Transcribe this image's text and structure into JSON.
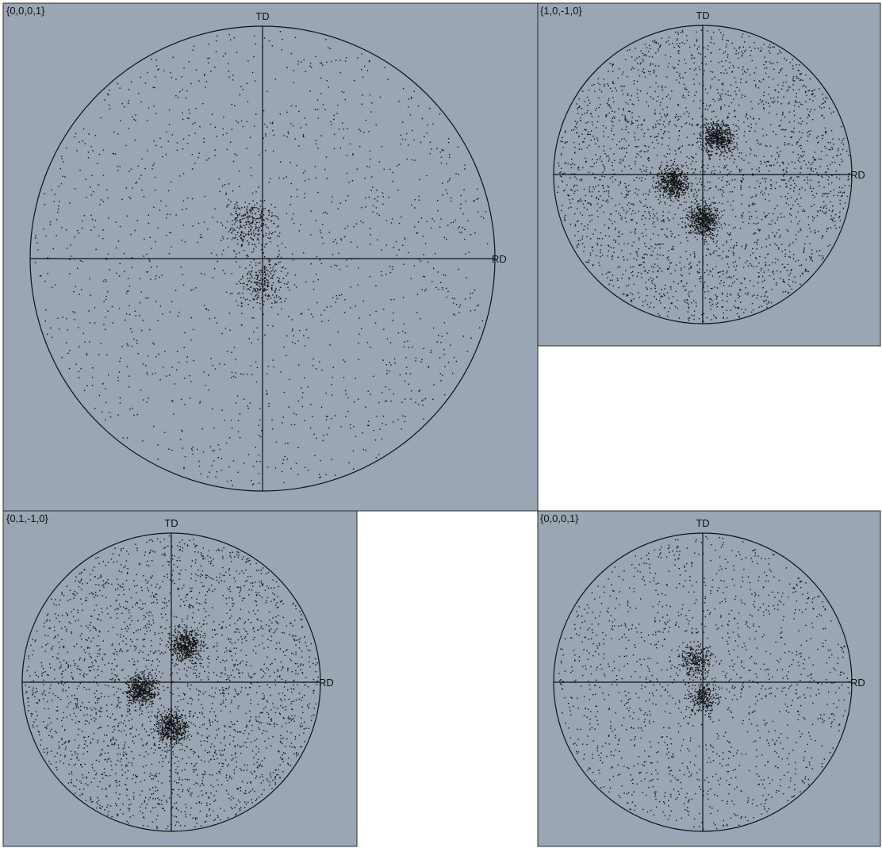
{
  "colors": {
    "panel_background": "#9aa6b4",
    "points": "#111111",
    "page_background": "#ffffff"
  },
  "chart_data": [
    {
      "type": "scatter",
      "plot": "pole-figure",
      "title": "{0,0,0,1}",
      "axis_labels": {
        "top": "TD",
        "right": "RD"
      },
      "point_density": "sparse",
      "clusters": [
        [
          -0.05,
          0.15
        ],
        [
          0.0,
          -0.1
        ]
      ]
    },
    {
      "type": "scatter",
      "plot": "pole-figure",
      "title": "{1,0,-1,0}",
      "axis_labels": {
        "top": "TD",
        "right": "RD"
      },
      "point_density": "dense",
      "clusters": [
        [
          -0.2,
          -0.05
        ],
        [
          0.1,
          0.25
        ],
        [
          0.0,
          -0.3
        ]
      ]
    },
    {
      "type": "scatter",
      "plot": "pole-figure",
      "title": "{0,1,-1,0}",
      "axis_labels": {
        "top": "TD",
        "right": "RD"
      },
      "point_density": "dense",
      "clusters": [
        [
          -0.2,
          -0.05
        ],
        [
          0.1,
          0.25
        ],
        [
          0.0,
          -0.3
        ]
      ]
    },
    {
      "type": "scatter",
      "plot": "pole-figure",
      "title": "{0,0,0,1}",
      "axis_labels": {
        "top": "TD",
        "right": "RD"
      },
      "point_density": "sparse",
      "clusters": [
        [
          -0.05,
          0.15
        ],
        [
          0.0,
          -0.1
        ]
      ]
    }
  ]
}
